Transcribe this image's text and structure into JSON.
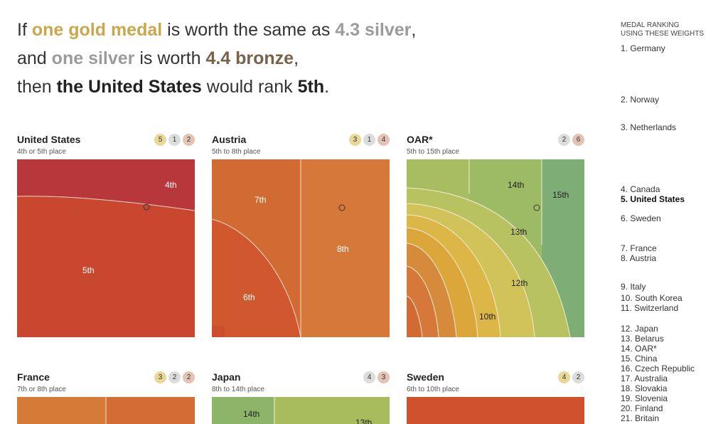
{
  "headline": {
    "l1_a": "If ",
    "l1_gold": "one gold medal",
    "l1_b": " is worth the same as ",
    "l1_silver": "4.3 silver",
    "l1_c": ",",
    "l2_a": "and ",
    "l2_silver": "one silver",
    "l2_b": " is worth ",
    "l2_bronze": "4.4 bronze",
    "l2_c": ",",
    "l3_a": "then ",
    "l3_country": "the United States",
    "l3_b": " would rank ",
    "l3_rank": "5th",
    "l3_c": "."
  },
  "ranking": {
    "title_line1": "MEDAL RANKING",
    "title_line2": "USING THESE WEIGHTS",
    "items": [
      "1. Germany",
      "2. Norway",
      "3. Netherlands",
      "4. Canada",
      "5. United States",
      "6. Sweden",
      "7. France",
      "8. Austria",
      "9. Italy",
      "10. South Korea",
      "11. Switzerland",
      "12. Japan",
      "13. Belarus",
      "14. OAR*",
      "15. China",
      "16. Czech Republic",
      "17. Australia",
      "18. Slovakia",
      "19. Slovenia",
      "20. Finland",
      "21. Britain"
    ],
    "highlight": "5. United States"
  },
  "colors": {
    "r4": "#b7373a",
    "r5": "#c9472e",
    "r6": "#d0572e",
    "r7": "#d26a33",
    "r8": "#d6783a",
    "r9": "#d68a3c",
    "r10": "#dba63a",
    "r11": "#ddb648",
    "r12": "#d1c35a",
    "r13": "#b9c260",
    "r14": "#9dba64",
    "r15": "#7fad76",
    "gold": "#c9a84c",
    "silver": "#9b9b9b",
    "bronze": "#7a6248"
  },
  "chart_data": [
    {
      "type": "heatmap",
      "country": "United States",
      "title": "United States",
      "subtitle": "4th or 5th place",
      "medals": {
        "gold": 5,
        "silver": 1,
        "bronze": 2
      },
      "region_labels": [
        "4th",
        "5th"
      ]
    },
    {
      "type": "heatmap",
      "country": "Austria",
      "title": "Austria",
      "subtitle": "5th to 8th place",
      "medals": {
        "gold": 3,
        "silver": 1,
        "bronze": 4
      },
      "region_labels": [
        "7th",
        "8th",
        "6th"
      ]
    },
    {
      "type": "heatmap",
      "country": "OAR*",
      "title": "OAR*",
      "subtitle": "5th to 15th place",
      "medals": {
        "silver": 2,
        "bronze": 6
      },
      "region_labels": [
        "14th",
        "15th",
        "13th",
        "12th",
        "10th"
      ]
    },
    {
      "type": "heatmap",
      "country": "France",
      "title": "France",
      "subtitle": "7th or 8th place",
      "medals": {
        "gold": 3,
        "silver": 2,
        "bronze": 2
      },
      "region_labels": []
    },
    {
      "type": "heatmap",
      "country": "Japan",
      "title": "Japan",
      "subtitle": "8th to 14th place",
      "medals": {
        "silver": 4,
        "bronze": 3
      },
      "region_labels": [
        "14th",
        "13th"
      ]
    },
    {
      "type": "heatmap",
      "country": "Sweden",
      "title": "Sweden",
      "subtitle": "6th to 10th place",
      "medals": {
        "gold": 4,
        "silver": 2
      },
      "region_labels": []
    }
  ]
}
